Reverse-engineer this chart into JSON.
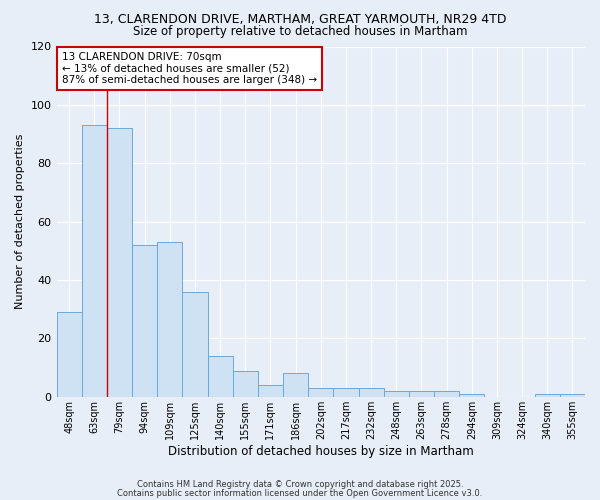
{
  "title_line1": "13, CLARENDON DRIVE, MARTHAM, GREAT YARMOUTH, NR29 4TD",
  "title_line2": "Size of property relative to detached houses in Martham",
  "xlabel": "Distribution of detached houses by size in Martham",
  "ylabel": "Number of detached properties",
  "categories": [
    "48sqm",
    "63sqm",
    "79sqm",
    "94sqm",
    "109sqm",
    "125sqm",
    "140sqm",
    "155sqm",
    "171sqm",
    "186sqm",
    "202sqm",
    "217sqm",
    "232sqm",
    "248sqm",
    "263sqm",
    "278sqm",
    "294sqm",
    "309sqm",
    "324sqm",
    "340sqm",
    "355sqm"
  ],
  "values": [
    29,
    93,
    92,
    52,
    53,
    36,
    14,
    9,
    4,
    8,
    3,
    3,
    3,
    2,
    2,
    2,
    1,
    0,
    0,
    1,
    1
  ],
  "bar_color": "#cfe2f3",
  "bar_edge_color": "#6aa9d8",
  "background_color": "#e8eef8",
  "grid_color": "#ffffff",
  "vline_x": 1.5,
  "vline_color": "#cc0000",
  "annotation_title": "13 CLARENDON DRIVE: 70sqm",
  "annotation_line2": "← 13% of detached houses are smaller (52)",
  "annotation_line3": "87% of semi-detached houses are larger (348) →",
  "annotation_box_color": "#ffffff",
  "annotation_box_edge": "#cc0000",
  "ylim": [
    0,
    120
  ],
  "yticks": [
    0,
    20,
    40,
    60,
    80,
    100,
    120
  ],
  "footnote1": "Contains HM Land Registry data © Crown copyright and database right 2025.",
  "footnote2": "Contains public sector information licensed under the Open Government Licence v3.0."
}
